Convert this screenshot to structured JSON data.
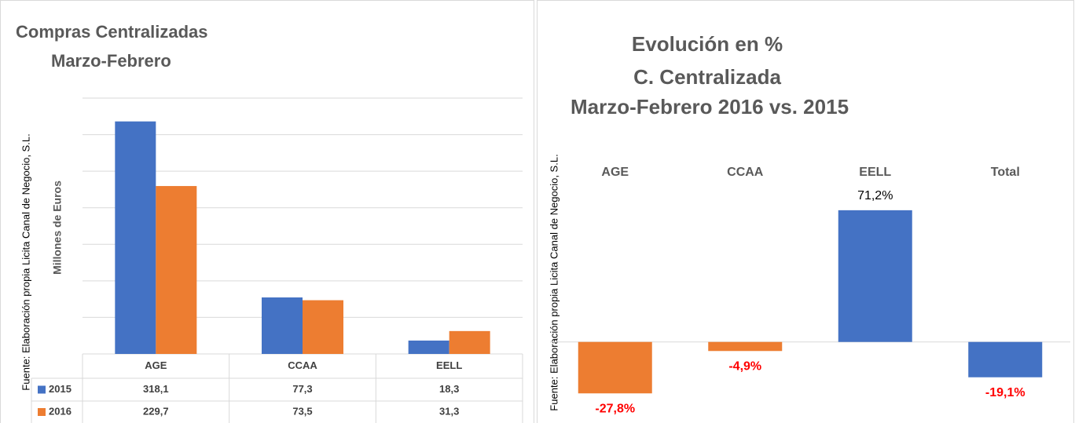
{
  "chart_data": [
    {
      "type": "bar",
      "title": "Compras  Centralizadas",
      "subtitle": "Marzo-Febrero",
      "y_label": "Millones de Euros",
      "source": "Fuente: Elaboración propia Licita Canal de Negocio, S.L.",
      "categories": [
        "AGE",
        "CCAA",
        "EELL"
      ],
      "series": [
        {
          "name": "2015",
          "color": "#4472c4",
          "values": [
            318.1,
            77.3,
            18.3
          ],
          "value_labels": [
            "318,1",
            "77,3",
            "18,3"
          ]
        },
        {
          "name": "2016",
          "color": "#ed7d31",
          "values": [
            229.7,
            73.5,
            31.3
          ],
          "value_labels": [
            "229,7",
            "73,5",
            "31,3"
          ]
        }
      ],
      "ylim": [
        0,
        350
      ],
      "yticks": [
        0,
        50,
        100,
        150,
        200,
        250,
        300,
        350
      ],
      "grid": true
    },
    {
      "type": "bar",
      "title": "Evolución en %",
      "subtitle": "C. Centralizada",
      "subtitle2": "Marzo-Febrero 2016 vs. 2015",
      "source": "Fuente: Elaboración propia Licita Canal de Negocio, S.L.",
      "categories": [
        "AGE",
        "CCAA",
        "EELL",
        "Total"
      ],
      "values": [
        -27.8,
        -4.9,
        71.2,
        -19.1
      ],
      "value_labels": [
        "-27,8%",
        "-4,9%",
        "71,2%",
        "-19,1%"
      ],
      "colors": [
        "#ed7d31",
        "#ed7d31",
        "#4472c4",
        "#4472c4"
      ],
      "ylim": [
        -40,
        100
      ],
      "grid": false
    }
  ]
}
